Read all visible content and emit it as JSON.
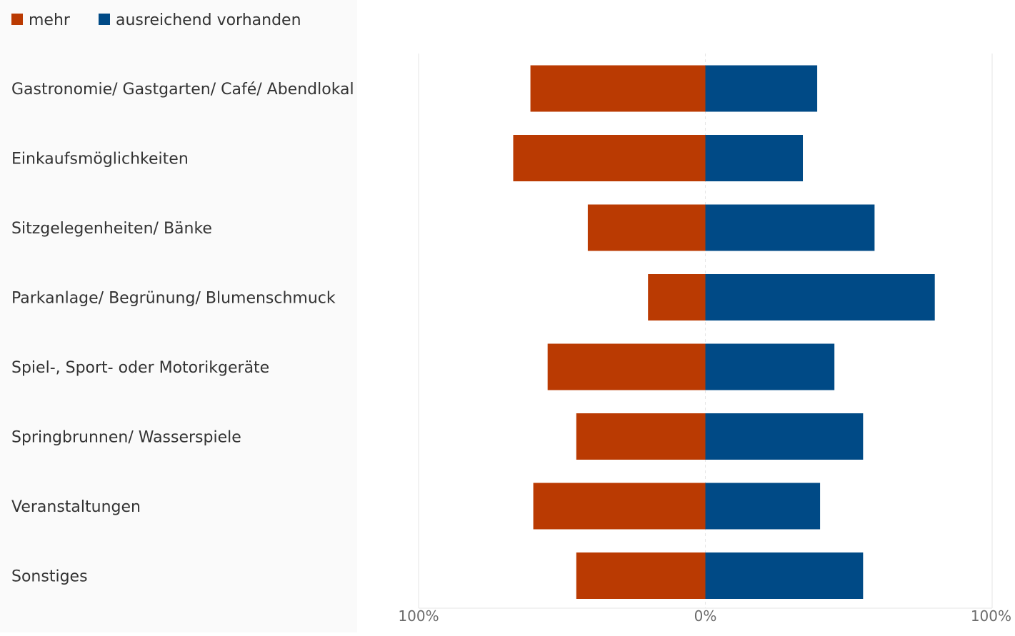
{
  "chart_data": {
    "type": "bar",
    "orientation": "horizontal-diverging",
    "legend_position": "top-left",
    "categories": [
      "Gastronomie/ Gastgarten/ Café/ Abendlokal",
      "Einkaufsmöglichkeiten",
      "Sitzgelegenheiten/ Bänke",
      "Parkanlage/ Begrünung/ Blumenschmuck",
      "Spiel-, Sport- oder Motorikgeräte",
      "Springbrunnen/ Wasserspiele",
      "Veranstaltungen",
      "Sonstiges"
    ],
    "series": [
      {
        "name": "mehr",
        "color": "#BA3A02",
        "direction": "left",
        "values": [
          61,
          67,
          41,
          20,
          55,
          45,
          60,
          45
        ]
      },
      {
        "name": "ausreichend vorhanden",
        "color": "#004A86",
        "direction": "right",
        "values": [
          39,
          34,
          59,
          80,
          45,
          55,
          40,
          55
        ]
      }
    ],
    "xlim": [
      -100,
      100
    ],
    "xticks": [
      {
        "value": -100,
        "label": "100%"
      },
      {
        "value": 0,
        "label": "0%"
      },
      {
        "value": 100,
        "label": "100%"
      }
    ],
    "grid": true,
    "colors": {
      "label_text": "#333333",
      "tick_text": "#6b6b6b",
      "gridline": "#e6e6e6"
    }
  }
}
